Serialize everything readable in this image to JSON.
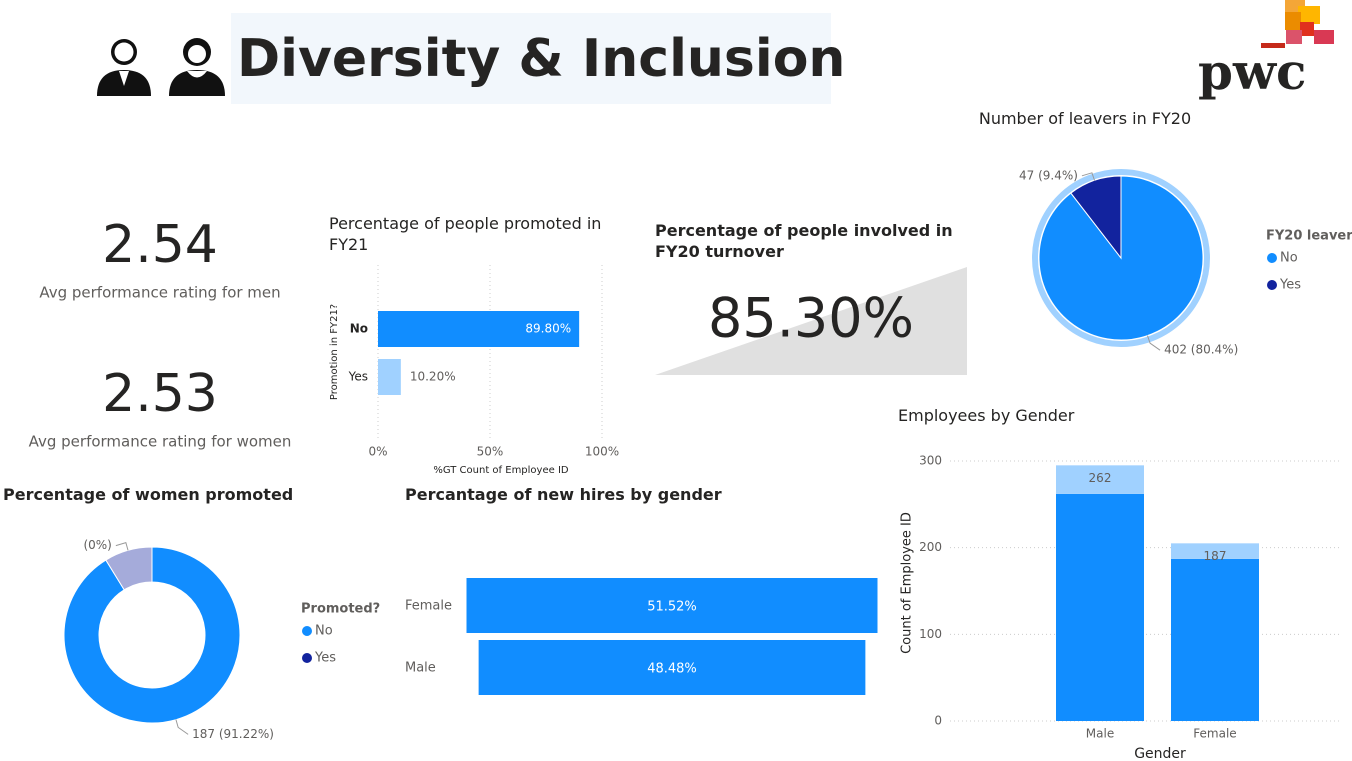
{
  "header": {
    "title": "Diversity & Inclusion",
    "logo": "pwc"
  },
  "cards": [
    {
      "value": 2.54,
      "label": "Avg performance rating for men"
    },
    {
      "value": 2.53,
      "label": "Avg performance rating for women"
    },
    {
      "title": "Percentage of people involved in FY20 turnover",
      "value": "85.30%"
    }
  ],
  "chart_data": [
    {
      "type": "hbar",
      "title": "Percentage of people promoted in FY21",
      "ylabel": "Promotion in FY21?",
      "xlabel": "%GT Count of Employee ID",
      "categories": [
        "No",
        "Yes"
      ],
      "values": [
        89.8,
        10.2
      ],
      "value_labels": [
        "89.80%",
        "10.20%"
      ],
      "colors": [
        "#118dff",
        "#a0d1ff"
      ],
      "xlim": [
        0,
        100
      ],
      "xticks": [
        {
          "value": 0,
          "label": "0%"
        },
        {
          "value": 50,
          "label": "50%"
        },
        {
          "value": 100,
          "label": "100%"
        }
      ],
      "grid": true
    },
    {
      "type": "pie",
      "title": "Number of leavers in FY20",
      "legend_title": "FY20 leaver?",
      "categories": [
        "No",
        "Yes"
      ],
      "values": [
        402,
        47
      ],
      "value_labels": [
        "402 (80.4%)",
        "47 (9.4%)"
      ],
      "colors": [
        "#118dff",
        "#12239e"
      ],
      "legend": "right"
    },
    {
      "type": "donut",
      "title": "Percentage of women promoted",
      "legend_title": "Promoted?",
      "categories": [
        "No",
        "Yes"
      ],
      "values": [
        187,
        18
      ],
      "value_labels": [
        "187 (91.22%)",
        null
      ],
      "colors": [
        "#118dff",
        "#12239e"
      ],
      "dimmed": [
        "Yes"
      ],
      "annotations": [
        {
          "label": "(0%)",
          "category": "Yes"
        }
      ],
      "legend": "right"
    },
    {
      "type": "funnel",
      "title": "Percantage of new hires by gender",
      "categories": [
        "Female",
        "Male"
      ],
      "values": [
        51.52,
        48.48
      ],
      "value_labels": [
        "51.52%",
        "48.48%"
      ],
      "color": "#118dff"
    },
    {
      "type": "stacked_column",
      "title": "Employees by Gender",
      "xlabel": "Gender",
      "ylabel": "Count of Employee ID",
      "categories": [
        "Male",
        "Female"
      ],
      "series": [
        {
          "color": "#118dff",
          "values": [
            262,
            187
          ]
        },
        {
          "color": "#a0d1ff",
          "values": [
            33,
            18
          ]
        }
      ],
      "ylim": [
        0,
        300
      ],
      "yticks": [
        0,
        100,
        200,
        300
      ],
      "grid": true
    }
  ]
}
